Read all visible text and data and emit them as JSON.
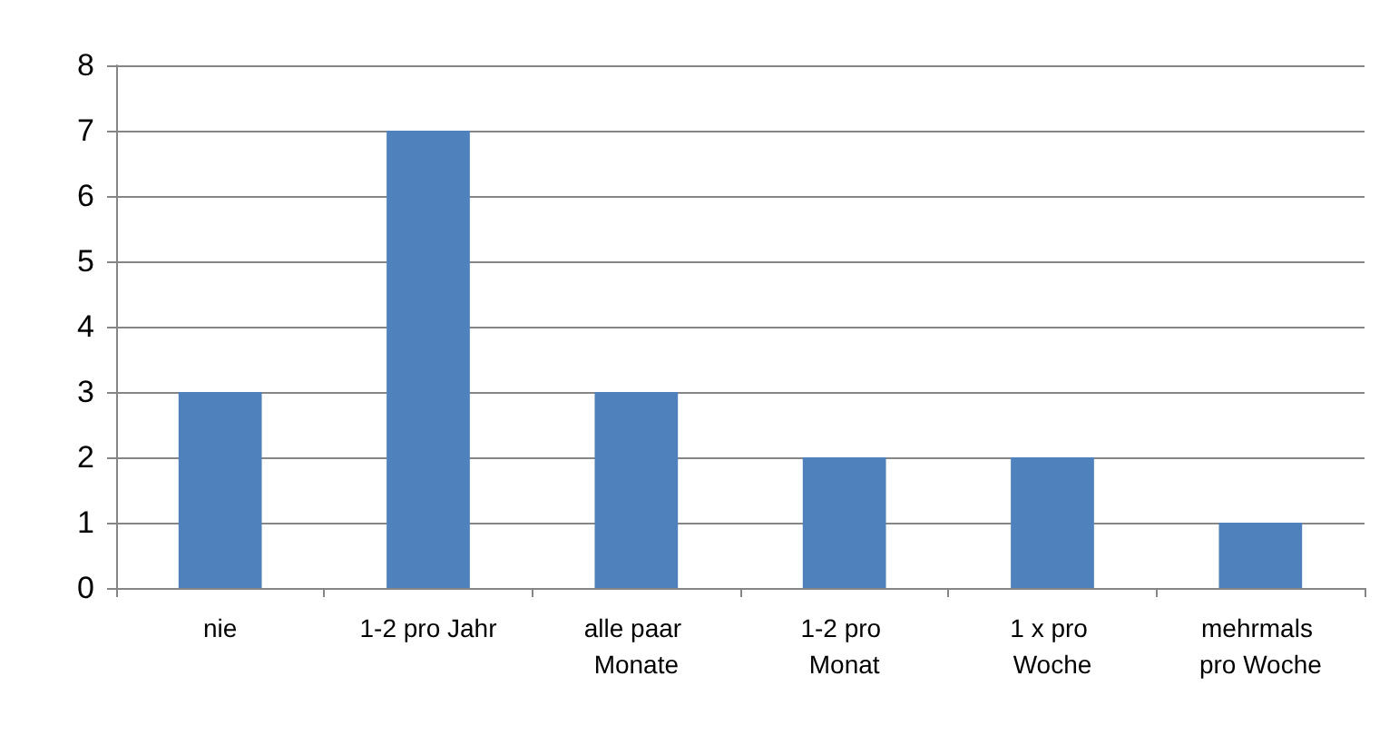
{
  "chart_data": {
    "type": "bar",
    "categories": [
      "nie",
      "1-2 pro Jahr",
      "alle paar Monate",
      "1-2 pro Monat",
      "1 x pro Woche",
      "mehrmals pro Woche"
    ],
    "values": [
      3,
      7,
      3,
      2,
      2,
      1
    ],
    "color": "#4f81bd",
    "ylim": [
      0,
      8
    ],
    "yticks": [
      0,
      1,
      2,
      3,
      4,
      5,
      6,
      7,
      8
    ],
    "grid": "y"
  }
}
